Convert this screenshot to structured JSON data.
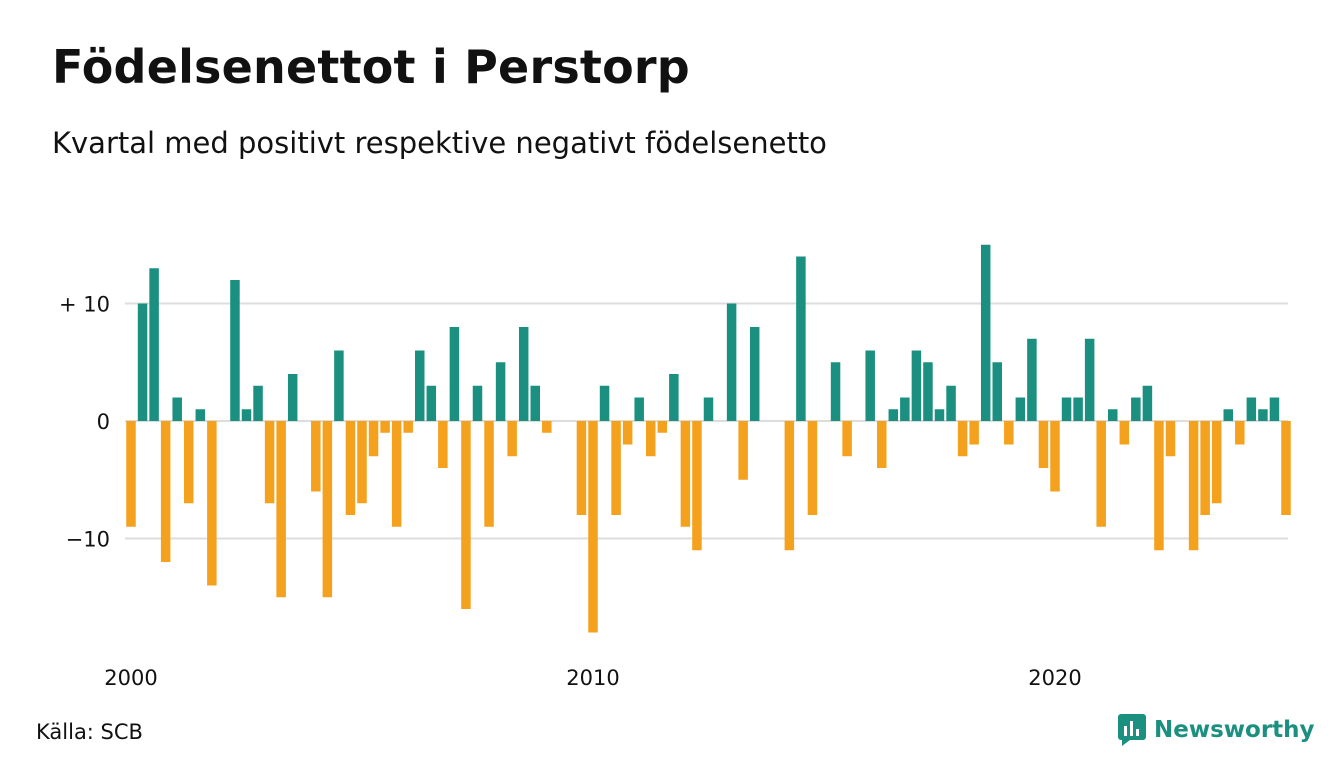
{
  "title": "Födelsenettot i Perstorp",
  "subtitle": "Kvartal med positivt respektive negativt födelsenetto",
  "source": "Källa: SCB",
  "brand": {
    "name": "Newsworthy",
    "icon": "newsworthy-logo-icon"
  },
  "colors": {
    "positive": "#1b8f80",
    "negative": "#f4a11d",
    "grid": "#dddddd"
  },
  "chart_data": {
    "type": "bar",
    "title": "Födelsenettot i Perstorp",
    "subtitle": "Kvartal med positivt respektive negativt födelsenetto",
    "xlabel": "",
    "ylabel": "",
    "ylim": [
      -19,
      16
    ],
    "grid": "horizontal",
    "x_tick_labels": [
      "2000",
      "2010",
      "2020"
    ],
    "y_ticks": [
      {
        "value": 10,
        "label": "+ 10"
      },
      {
        "value": 0,
        "label": "0"
      },
      {
        "value": -10,
        "label": "−10"
      }
    ],
    "start_year": 2000,
    "values": [
      -9,
      10,
      13,
      -12,
      2,
      -7,
      1,
      -14,
      0,
      12,
      1,
      3,
      -7,
      -15,
      4,
      0,
      -6,
      -15,
      6,
      -8,
      -7,
      -3,
      -1,
      -9,
      -1,
      6,
      3,
      -4,
      8,
      -16,
      3,
      -9,
      5,
      -3,
      8,
      3,
      -1,
      0,
      0,
      -8,
      -18,
      3,
      -8,
      -2,
      2,
      -3,
      -1,
      4,
      -9,
      -11,
      2,
      0,
      10,
      -5,
      8,
      0,
      0,
      -11,
      14,
      -8,
      0,
      5,
      -3,
      0,
      6,
      -4,
      1,
      2,
      6,
      5,
      1,
      3,
      -3,
      -2,
      15,
      5,
      -2,
      2,
      7,
      -4,
      -6,
      2,
      2,
      7,
      -9,
      1,
      -2,
      2,
      3,
      -11,
      -3,
      0,
      -11,
      -8,
      -7,
      1,
      -2,
      2,
      1,
      2,
      -8
    ]
  }
}
